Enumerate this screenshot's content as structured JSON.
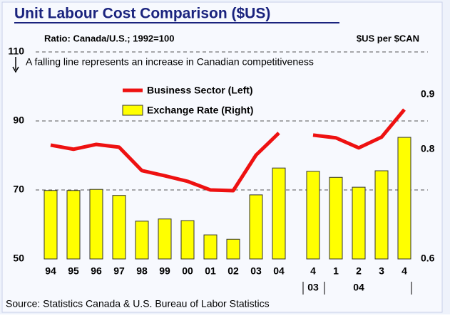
{
  "chart_data": {
    "type": "bar-line",
    "title": "Unit Labour Cost Comparison ($US)",
    "subtitle": "Ratio:  Canada/U.S.; 1992=100",
    "y2_label": "$US per $CAN",
    "annotation": "A falling line represents an increase in Canadian competitiveness",
    "source": "Source: Statistics Canada & U.S. Bureau of Labor Statistics",
    "categories": [
      "94",
      "95",
      "96",
      "97",
      "98",
      "99",
      "00",
      "01",
      "02",
      "03",
      "04",
      null,
      "4",
      "1",
      "2",
      "3",
      "4"
    ],
    "group_labels": [
      "03",
      "04"
    ],
    "series": [
      {
        "name": "Business Sector (Left)",
        "color": "#ee1111",
        "kind": "line",
        "values": [
          83.0,
          81.8,
          83.2,
          82.4,
          75.6,
          74.1,
          72.5,
          70.0,
          69.8,
          80.1,
          86.5,
          null,
          85.9,
          85.1,
          82.2,
          85.3,
          93.3
        ]
      },
      {
        "name": "Exchange Rate (Right)",
        "color": "#ffff00",
        "kind": "bar",
        "axis": "y2",
        "values": [
          0.725,
          0.725,
          0.727,
          0.716,
          0.669,
          0.673,
          0.67,
          0.644,
          0.636,
          0.717,
          0.766,
          null,
          0.76,
          0.749,
          0.731,
          0.761,
          0.822
        ]
      }
    ],
    "ylim": [
      50,
      110
    ],
    "yticks": [
      50,
      70,
      90,
      110
    ],
    "y2lim": [
      0.6,
      0.9
    ],
    "y2ticks": [
      0.6,
      0.8,
      0.9
    ],
    "grid": true
  }
}
